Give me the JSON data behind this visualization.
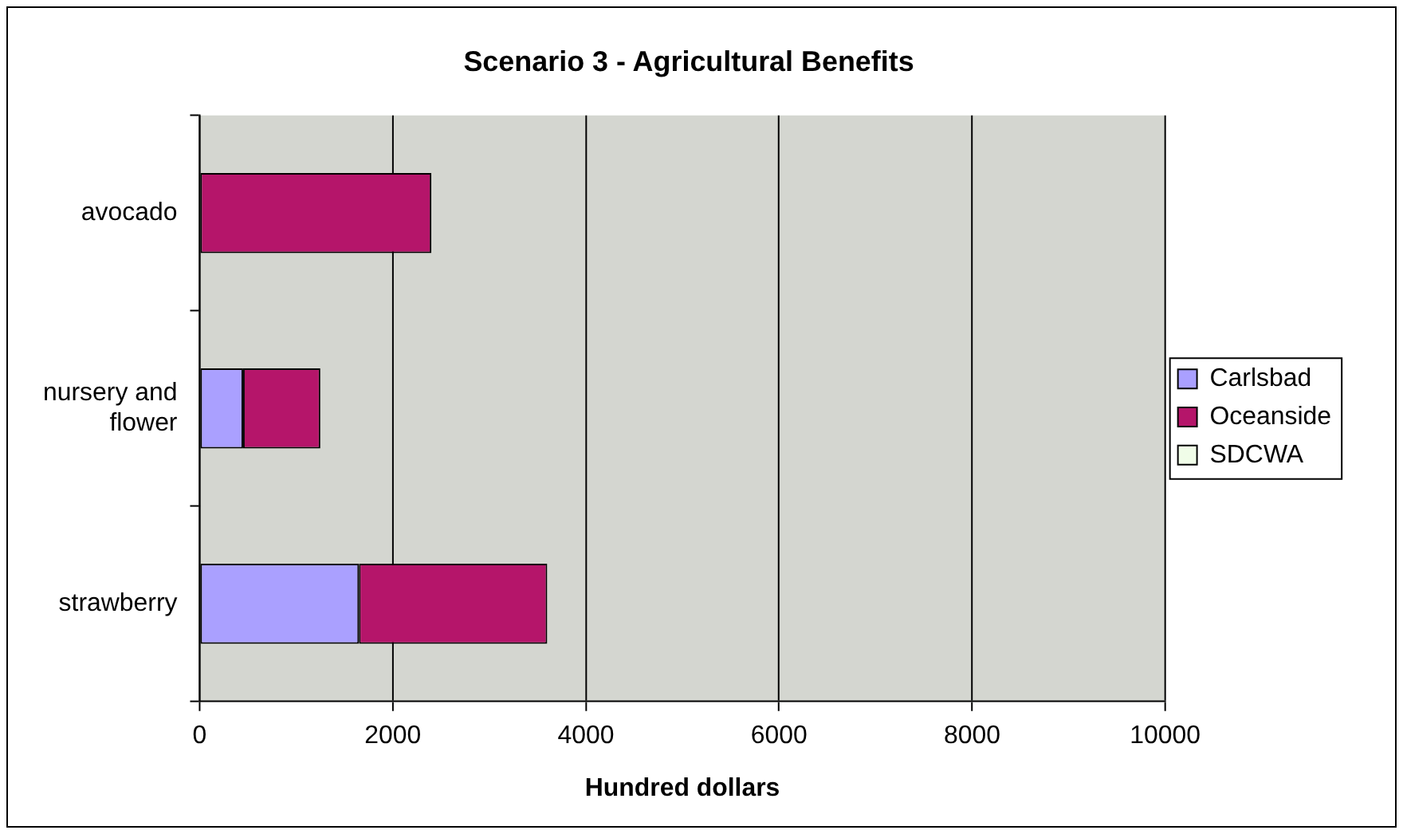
{
  "chart_data": {
    "type": "bar",
    "orientation": "horizontal",
    "stacked": true,
    "title": "Scenario 3 - Agricultural Benefits",
    "xlabel": "Hundred dollars",
    "categories": [
      "avocado",
      "nursery and flower",
      "strawberry"
    ],
    "series": [
      {
        "name": "Carlsbad",
        "color": "#aaa0ff",
        "values": [
          0,
          450,
          1650
        ]
      },
      {
        "name": "Oceanside",
        "color": "#b5156a",
        "values": [
          2400,
          800,
          1950
        ]
      },
      {
        "name": "SDCWA",
        "color": "#f0fde8",
        "values": [
          0,
          0,
          0
        ]
      }
    ],
    "xlim": [
      0,
      10000
    ],
    "xticks": [
      0,
      2000,
      4000,
      6000,
      8000,
      10000
    ],
    "grid": "x",
    "legend": "right"
  }
}
